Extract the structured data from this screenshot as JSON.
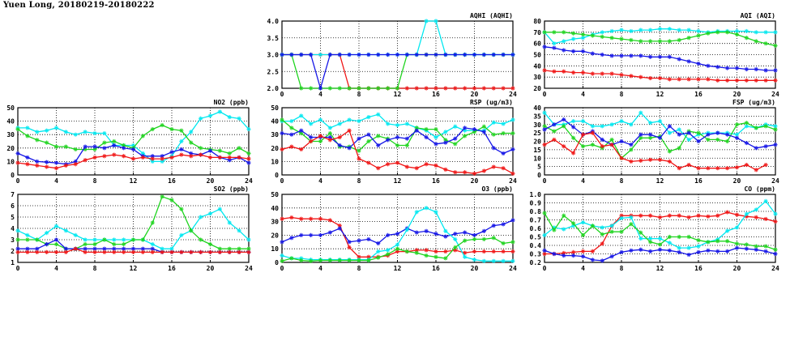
{
  "page_title": "Yuen Long, 20180219-20180222",
  "colors": {
    "cyan": "#00e8f0",
    "green": "#1ed41e",
    "blue": "#1414e6",
    "red": "#f01414"
  },
  "chart_data": [
    {
      "type": "line",
      "title": "AQHI (AQHI)",
      "xlim": [
        0,
        24
      ],
      "ylim": [
        2.0,
        4.0
      ],
      "xticks": [
        "0",
        "4",
        "8",
        "12",
        "16",
        "20",
        "24"
      ],
      "yticks": [
        "2.0",
        "2.5",
        "3.0",
        "3.5",
        "4.0"
      ],
      "grid": true,
      "series": [
        {
          "color": "red",
          "values": [
            3,
            3,
            3,
            3,
            3,
            3,
            3,
            2,
            2,
            2,
            2,
            2,
            2,
            2,
            2,
            2,
            2,
            2,
            2,
            2,
            2,
            2,
            2,
            2,
            2
          ]
        },
        {
          "color": "green",
          "values": [
            3,
            3,
            2,
            2,
            2,
            2,
            2,
            2,
            2,
            2,
            2,
            2,
            2,
            3,
            3,
            3,
            3,
            3,
            3,
            3,
            3,
            3,
            3,
            3,
            3
          ]
        },
        {
          "color": "cyan",
          "values": [
            3,
            3,
            3,
            3,
            3,
            3,
            3,
            3,
            3,
            3,
            3,
            3,
            3,
            3,
            3,
            4,
            4,
            3,
            3,
            3,
            3,
            3,
            3,
            3,
            3
          ]
        },
        {
          "color": "blue",
          "values": [
            3,
            3,
            3,
            3,
            2,
            3,
            3,
            3,
            3,
            3,
            3,
            3,
            3,
            3,
            3,
            3,
            3,
            3,
            3,
            3,
            3,
            3,
            3,
            3,
            3
          ]
        }
      ]
    },
    {
      "type": "line",
      "title": "AQI (AQI)",
      "xlim": [
        0,
        24
      ],
      "ylim": [
        20,
        80
      ],
      "xticks": [
        "0",
        "4",
        "8",
        "12",
        "16",
        "20",
        "24"
      ],
      "yticks": [
        "20",
        "30",
        "40",
        "50",
        "60",
        "70",
        "80"
      ],
      "grid": true,
      "series": [
        {
          "color": "cyan",
          "values": [
            70,
            60,
            62,
            64,
            65,
            68,
            70,
            71,
            72,
            71,
            72,
            72,
            73,
            73,
            72,
            72,
            71,
            70,
            71,
            71,
            71,
            71,
            70,
            70,
            70
          ]
        },
        {
          "color": "green",
          "values": [
            70,
            70,
            70,
            69,
            68,
            67,
            66,
            65,
            64,
            63,
            62,
            62,
            62,
            62,
            63,
            65,
            67,
            69,
            70,
            70,
            68,
            65,
            62,
            60,
            58
          ]
        },
        {
          "color": "blue",
          "values": [
            57,
            56,
            54,
            53,
            53,
            51,
            50,
            49,
            49,
            49,
            49,
            48,
            48,
            48,
            46,
            44,
            42,
            40,
            39,
            38,
            38,
            37,
            37,
            36,
            36
          ]
        },
        {
          "color": "red",
          "values": [
            36,
            35,
            35,
            34,
            34,
            33,
            33,
            33,
            32,
            31,
            30,
            29,
            29,
            28,
            28,
            28,
            28,
            28,
            27,
            27,
            27,
            27,
            27,
            27,
            27
          ]
        }
      ]
    },
    {
      "type": "line",
      "title": "NO2 (ppb)",
      "xlim": [
        0,
        24
      ],
      "ylim": [
        0,
        50
      ],
      "xticks": [
        "0",
        "4",
        "8",
        "12",
        "16",
        "20",
        "24"
      ],
      "yticks": [
        "0",
        "10",
        "20",
        "30",
        "40",
        "50"
      ],
      "grid": true,
      "series": [
        {
          "color": "cyan",
          "values": [
            35,
            35,
            32,
            33,
            35,
            32,
            30,
            32,
            31,
            31,
            22,
            22,
            22,
            16,
            10,
            10,
            14,
            25,
            32,
            42,
            44,
            47,
            43,
            42,
            34
          ]
        },
        {
          "color": "green",
          "values": [
            34,
            29,
            26,
            24,
            21,
            21,
            19,
            19,
            19,
            24,
            25,
            22,
            20,
            29,
            34,
            37,
            34,
            33,
            24,
            20,
            19,
            18,
            16,
            20,
            16
          ]
        },
        {
          "color": "blue",
          "values": [
            16,
            13,
            10,
            9.5,
            9,
            8,
            10,
            21,
            21,
            20,
            22,
            20,
            19,
            14,
            14,
            14,
            17,
            19,
            16,
            15,
            18,
            13,
            11,
            13,
            9
          ]
        },
        {
          "color": "red",
          "values": [
            9,
            8,
            7,
            6,
            5,
            7,
            8,
            11,
            13,
            14,
            15,
            14,
            12,
            13,
            12,
            12,
            13,
            15,
            14,
            15,
            13,
            13,
            13,
            13,
            12
          ]
        }
      ]
    },
    {
      "type": "line",
      "title": "RSP (ug/m3)",
      "xlim": [
        0,
        24
      ],
      "ylim": [
        0,
        50
      ],
      "xticks": [
        "0",
        "4",
        "8",
        "12",
        "16",
        "20",
        "24"
      ],
      "yticks": [
        "0",
        "10",
        "20",
        "30",
        "40",
        "50"
      ],
      "grid": true,
      "series": [
        {
          "color": "cyan",
          "values": [
            40,
            40,
            44,
            38,
            41,
            35,
            38,
            41,
            40,
            43,
            45,
            38,
            37,
            38,
            35,
            33,
            28,
            32,
            36,
            33,
            33,
            33,
            39,
            38,
            41
          ]
        },
        {
          "color": "green",
          "values": [
            41,
            35,
            31,
            25,
            25,
            31,
            21,
            21,
            18,
            25,
            29,
            27,
            22,
            22,
            35,
            34,
            34,
            26,
            23,
            29,
            32,
            36,
            30,
            31,
            31
          ]
        },
        {
          "color": "blue",
          "values": [
            31,
            30,
            33,
            28,
            28,
            28,
            22,
            20,
            27,
            30,
            22,
            26,
            28,
            27,
            33,
            28,
            23,
            24,
            27,
            35,
            34,
            32,
            20,
            16,
            19
          ]
        },
        {
          "color": "red",
          "values": [
            19,
            21,
            19,
            25,
            29,
            26,
            28,
            33,
            12,
            9,
            5,
            8,
            9,
            6,
            5,
            8,
            7,
            4,
            2,
            2,
            1,
            3,
            6,
            5,
            1
          ]
        }
      ]
    },
    {
      "type": "line",
      "title": "FSP (ug/m3)",
      "xlim": [
        0,
        24
      ],
      "ylim": [
        0,
        40
      ],
      "xticks": [
        "0",
        "4",
        "8",
        "12",
        "16",
        "20",
        "24"
      ],
      "yticks": [
        "0",
        "5",
        "10",
        "15",
        "20",
        "25",
        "30",
        "35",
        "40"
      ],
      "grid": true,
      "series": [
        {
          "color": "cyan",
          "values": [
            37,
            30,
            30,
            32,
            32,
            29,
            29,
            30,
            32,
            30,
            37,
            31,
            32,
            25,
            27,
            21,
            24,
            25,
            25,
            25,
            24,
            29,
            28,
            30,
            29
          ]
        },
        {
          "color": "green",
          "values": [
            29,
            26,
            29,
            22,
            17,
            18,
            16,
            21,
            10,
            15,
            22,
            22,
            23,
            14,
            16,
            26,
            25,
            21,
            21,
            20,
            30,
            31,
            28,
            29,
            27
          ]
        },
        {
          "color": "blue",
          "values": [
            27,
            30,
            33,
            28.5,
            24,
            26,
            21,
            18,
            20,
            18,
            24,
            24,
            22,
            29,
            24,
            25,
            20,
            24,
            25,
            24,
            22,
            19,
            16,
            17,
            18
          ]
        },
        {
          "color": "red",
          "values": [
            18,
            21,
            17,
            13,
            24,
            25,
            17,
            18,
            10,
            8,
            8.5,
            9,
            9,
            8,
            4,
            6,
            4,
            4,
            4,
            4,
            4.5,
            6,
            3,
            6,
            null
          ]
        }
      ]
    },
    {
      "type": "line",
      "title": "SO2 (ppb)",
      "xlim": [
        0,
        24
      ],
      "ylim": [
        1,
        7
      ],
      "xticks": [
        "0",
        "4",
        "8",
        "12",
        "16",
        "20",
        "24"
      ],
      "yticks": [
        "1",
        "2",
        "3",
        "4",
        "5",
        "6",
        "7"
      ],
      "grid": true,
      "series": [
        {
          "color": "cyan",
          "values": [
            3.8,
            3.4,
            3.0,
            3.6,
            4.2,
            3.8,
            3.4,
            3.0,
            3.0,
            3.0,
            3.0,
            3.0,
            3.0,
            3.0,
            2.6,
            2.2,
            2.2,
            3.4,
            3.8,
            5.0,
            5.3,
            5.7,
            4.5,
            3.8,
            3.0
          ]
        },
        {
          "color": "green",
          "values": [
            3,
            3,
            3,
            2.6,
            2.6,
            2.2,
            2.2,
            2.6,
            2.6,
            3,
            2.6,
            2.6,
            3,
            3,
            4.5,
            6.8,
            6.5,
            5.7,
            3.8,
            3,
            2.6,
            2.2,
            2.2,
            2.2,
            2.2
          ]
        },
        {
          "color": "blue",
          "values": [
            2.2,
            2.2,
            2.2,
            2.6,
            3.0,
            2.2,
            2.2,
            2.2,
            2.2,
            2.2,
            2.2,
            2.2,
            2.2,
            2.2,
            2.2,
            1.9,
            1.9,
            1.9,
            1.9,
            1.9,
            1.9,
            1.9,
            1.9,
            1.9,
            1.9
          ]
        },
        {
          "color": "red",
          "values": [
            1.9,
            1.9,
            1.9,
            1.9,
            1.9,
            1.9,
            2.2,
            1.9,
            1.9,
            1.9,
            1.9,
            1.9,
            1.9,
            1.9,
            1.9,
            1.9,
            1.9,
            1.9,
            1.9,
            1.9,
            1.9,
            1.9,
            1.9,
            1.9,
            1.9
          ]
        }
      ]
    },
    {
      "type": "line",
      "title": "O3 (ppb)",
      "xlim": [
        0,
        24
      ],
      "ylim": [
        0,
        50
      ],
      "xticks": [
        "0",
        "4",
        "8",
        "12",
        "16",
        "20",
        "24"
      ],
      "yticks": [
        "0",
        "10",
        "20",
        "30",
        "40",
        "50"
      ],
      "grid": true,
      "series": [
        {
          "color": "red",
          "values": [
            32,
            33,
            32,
            32,
            32,
            31,
            27,
            11,
            4,
            4,
            4,
            5,
            8,
            8,
            9,
            9,
            8,
            8,
            9,
            7,
            8,
            8,
            8,
            8,
            8
          ]
        },
        {
          "color": "blue",
          "values": [
            15,
            18,
            20,
            20,
            20,
            22,
            25,
            15,
            16,
            17,
            14,
            20,
            21,
            25,
            22,
            23,
            21,
            19,
            21,
            22,
            20,
            23,
            27,
            28,
            31
          ]
        },
        {
          "color": "cyan",
          "values": [
            5,
            3,
            3,
            2,
            2,
            2,
            2,
            2,
            2,
            2,
            8,
            9,
            13,
            24,
            37,
            40,
            37,
            23,
            17,
            4,
            2,
            1,
            1,
            1,
            1
          ]
        },
        {
          "color": "green",
          "values": [
            1,
            3,
            1.5,
            1,
            1.5,
            1.5,
            1.5,
            1.5,
            1.5,
            1.5,
            3.5,
            6,
            10,
            8,
            7,
            5,
            4,
            3,
            11,
            16,
            17,
            17,
            18,
            14,
            15
          ]
        }
      ]
    },
    {
      "type": "line",
      "title": "CO (ppm)",
      "xlim": [
        0,
        24
      ],
      "ylim": [
        0.2,
        1.0
      ],
      "xticks": [
        "0",
        "4",
        "8",
        "12",
        "16",
        "20",
        "24"
      ],
      "yticks": [
        "0.2",
        "0.3",
        "0.4",
        "0.5",
        "0.6",
        "0.7",
        "0.8",
        "0.9",
        "1.0"
      ],
      "grid": true,
      "series": [
        {
          "color": "red",
          "values": [
            0.3,
            0.3,
            0.31,
            0.32,
            0.33,
            0.33,
            0.42,
            0.63,
            0.75,
            0.75,
            0.75,
            0.75,
            0.73,
            0.75,
            0.75,
            0.73,
            0.75,
            0.74,
            0.75,
            0.79,
            0.76,
            0.74,
            0.73,
            0.71,
            0.68
          ]
        },
        {
          "color": "blue",
          "values": [
            0.34,
            0.3,
            0.28,
            0.28,
            0.27,
            0.23,
            0.22,
            0.27,
            0.32,
            0.34,
            0.35,
            0.33,
            0.35,
            0.34,
            0.32,
            0.29,
            0.32,
            0.34,
            0.33,
            0.33,
            0.37,
            0.36,
            0.35,
            0.33,
            0.3
          ]
        },
        {
          "color": "cyan",
          "values": [
            0.52,
            0.61,
            0.59,
            0.63,
            0.67,
            0.63,
            0.61,
            0.63,
            0.72,
            0.73,
            0.48,
            0.48,
            0.48,
            0.43,
            0.37,
            0.37,
            0.39,
            0.44,
            0.47,
            0.57,
            0.61,
            0.77,
            0.82,
            0.92,
            0.77
          ]
        },
        {
          "color": "green",
          "values": [
            0.78,
            0.58,
            0.75,
            0.66,
            0.52,
            0.63,
            0.53,
            0.56,
            0.56,
            0.65,
            0.55,
            0.44,
            0.41,
            0.5,
            0.5,
            0.5,
            0.46,
            0.44,
            0.45,
            0.45,
            0.42,
            0.41,
            0.39,
            0.39,
            0.35
          ]
        }
      ]
    }
  ]
}
